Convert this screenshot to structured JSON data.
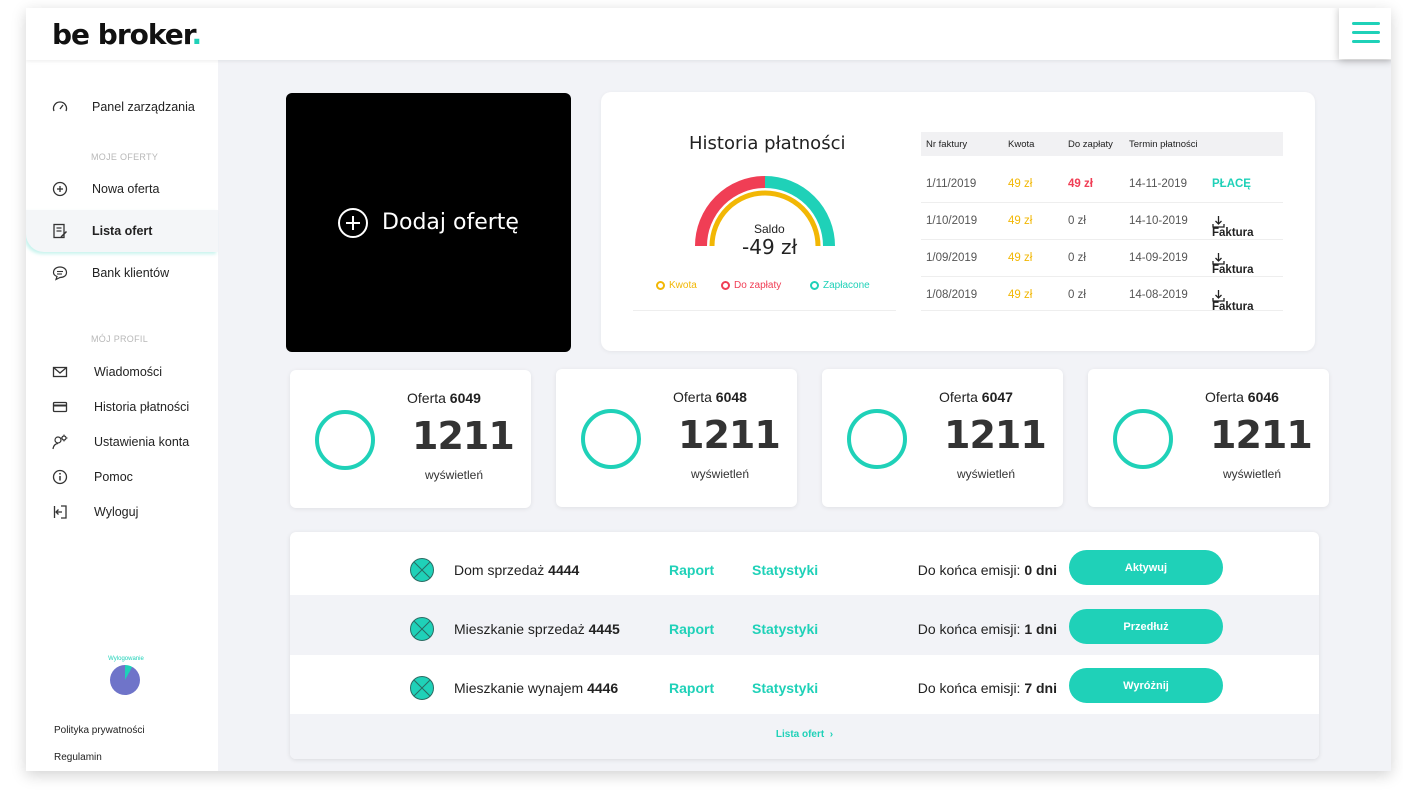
{
  "brand": {
    "logo_main": "be broker",
    "logo_dot": "."
  },
  "sidebar": {
    "items": [
      {
        "label": "Panel zarządzania",
        "icon": "gauge-icon"
      },
      {
        "label": "Nowa oferta",
        "icon": "plus-circle-icon"
      },
      {
        "label": "Lista ofert",
        "icon": "list-edit-icon"
      },
      {
        "label": "Bank klientów",
        "icon": "chat-icon"
      },
      {
        "label": "Wiadomości",
        "icon": "mail-icon"
      },
      {
        "label": "Historia płatności",
        "icon": "card-icon"
      },
      {
        "label": "Ustawienia konta",
        "icon": "user-settings-icon"
      },
      {
        "label": "Pomoc",
        "icon": "info-icon"
      },
      {
        "label": "Wyloguj",
        "icon": "logout-icon"
      }
    ],
    "section_offers": "MOJE OFERTY",
    "section_profile": "MÓJ PROFIL",
    "pie_label": "Wylogowanie",
    "privacy": "Polityka prywatności",
    "terms": "Regulamin"
  },
  "add_offer": {
    "label": "Dodaj ofertę"
  },
  "payments": {
    "title": "Historia płatności",
    "saldo_label": "Saldo",
    "saldo_value": "-49 zł",
    "legend": [
      {
        "label": "Kwota",
        "color": "#f2b705"
      },
      {
        "label": "Do zapłaty",
        "color": "#f03e55"
      },
      {
        "label": "Zapłacone",
        "color": "#1fd1b8"
      }
    ],
    "columns": [
      "Nr faktury",
      "Kwota",
      "Do zapłaty",
      "Termin płatności"
    ],
    "rows": [
      {
        "nr": "1/11/2019",
        "kwota": "49 zł",
        "do_zaplaty": "49 zł",
        "termin": "14-11-2019",
        "action": "PŁACĘ"
      },
      {
        "nr": "1/10/2019",
        "kwota": "49 zł",
        "do_zaplaty": "0 zł",
        "termin": "14-10-2019",
        "action": "Faktura"
      },
      {
        "nr": "1/09/2019",
        "kwota": "49 zł",
        "do_zaplaty": "0 zł",
        "termin": "14-09-2019",
        "action": "Faktura"
      },
      {
        "nr": "1/08/2019",
        "kwota": "49 zł",
        "do_zaplaty": "0 zł",
        "termin": "14-08-2019",
        "action": "Faktura"
      }
    ]
  },
  "offer_cards": [
    {
      "prefix": "Oferta",
      "id": "6049",
      "views": "1211",
      "views_label": "wyświetleń"
    },
    {
      "prefix": "Oferta",
      "id": "6048",
      "views": "1211",
      "views_label": "wyświetleń"
    },
    {
      "prefix": "Oferta",
      "id": "6047",
      "views": "1211",
      "views_label": "wyświetleń"
    },
    {
      "prefix": "Oferta",
      "id": "6046",
      "views": "1211",
      "views_label": "wyświetleń"
    }
  ],
  "offers_list": {
    "rows": [
      {
        "name": "Dom sprzedaż",
        "id": "4444",
        "raport": "Raport",
        "stats": "Statystyki",
        "emission_label": "Do końca emisji:",
        "emission_value": "0 dni",
        "button": "Aktywuj"
      },
      {
        "name": "Mieszkanie sprzedaż",
        "id": "4445",
        "raport": "Raport",
        "stats": "Statystyki",
        "emission_label": "Do końca emisji:",
        "emission_value": "1 dni",
        "button": "Przedłuż"
      },
      {
        "name": "Mieszkanie wynajem",
        "id": "4446",
        "raport": "Raport",
        "stats": "Statystyki",
        "emission_label": "Do końca emisji:",
        "emission_value": "7 dni",
        "button": "Wyróżnij"
      }
    ],
    "more": "Lista ofert",
    "more_arrow": "›"
  },
  "colors": {
    "accent": "#1fd1b8",
    "yellow": "#f2b705",
    "red": "#f03e55"
  }
}
